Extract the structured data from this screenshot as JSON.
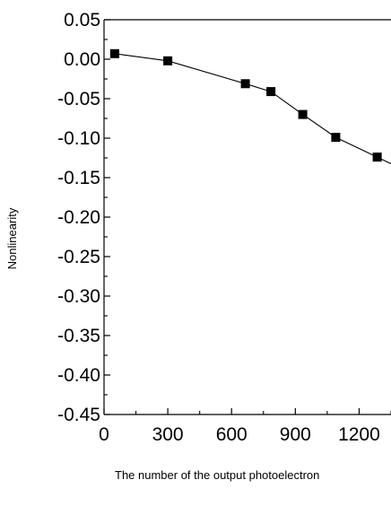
{
  "chart_data": {
    "type": "line",
    "title": "",
    "xlabel": "The number of the output photoelectron",
    "ylabel": "Nonlinearity",
    "xlim": [
      0,
      1300
    ],
    "ylim": [
      -0.45,
      0.05
    ],
    "x_ticks": [
      "0",
      "300",
      "600",
      "900",
      "1200"
    ],
    "y_ticks": [
      "0.05",
      "0.00",
      "-0.05",
      "-0.10",
      "-0.15",
      "-0.20",
      "-0.25",
      "-0.30",
      "-0.35",
      "-0.40",
      "-0.45"
    ],
    "grid": false,
    "series": [
      {
        "marker": "square",
        "color": "#000000",
        "x": [
          50,
          300,
          665,
          785,
          935,
          1090,
          1285
        ],
        "y": [
          0.007,
          -0.002,
          -0.031,
          -0.041,
          -0.07,
          -0.099,
          -0.124
        ]
      }
    ]
  }
}
